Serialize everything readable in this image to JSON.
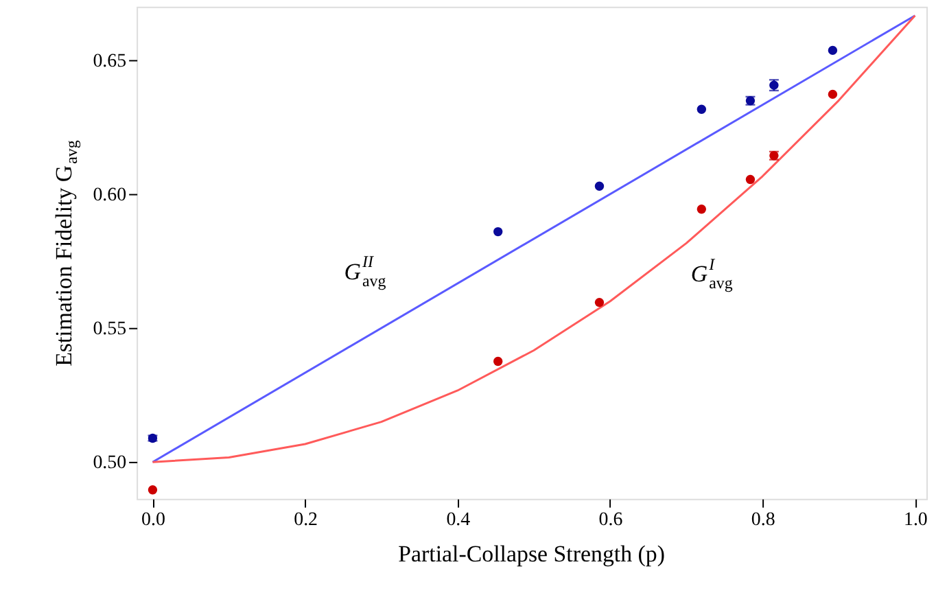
{
  "chart_data": {
    "type": "scatter",
    "xlabel": "Partial-Collapse Strength (p)",
    "ylabel": "Estimation Fidelity G$_{avg}$",
    "x": [
      0,
      0.453,
      0.586,
      0.72,
      0.784,
      0.815,
      0.892
    ],
    "xlim": [
      -0.021,
      1.015
    ],
    "xticks": [
      {
        "value": 0,
        "label": "0.0"
      },
      {
        "value": 0.2,
        "label": "0.2"
      },
      {
        "value": 0.4,
        "label": "0.4"
      },
      {
        "value": 0.6,
        "label": "0.6"
      },
      {
        "value": 0.8,
        "label": "0.8"
      },
      {
        "value": 1,
        "label": "1.0"
      }
    ],
    "ylim": [
      0.4863,
      0.67
    ],
    "yticks": [
      {
        "value": 0.5,
        "label": "0.50"
      },
      {
        "value": 0.55,
        "label": "0.55"
      },
      {
        "value": 0.6,
        "label": "0.60"
      },
      {
        "value": 0.65,
        "label": "0.65"
      }
    ],
    "grid": false,
    "series": [
      {
        "type": "line",
        "color": "#5a5aff",
        "x": [
          0,
          1
        ],
        "values": [
          0.5,
          0.6667
        ],
        "line_style": "solid",
        "marker": "none"
      },
      {
        "type": "line",
        "color": "#ff5a5a",
        "x": [
          0,
          0.1,
          0.2,
          0.3,
          0.4,
          0.5,
          0.6,
          0.7,
          0.8,
          0.9,
          1
        ],
        "values": [
          0.5,
          0.5017,
          0.5067,
          0.515,
          0.5267,
          0.5417,
          0.56,
          0.5817,
          0.6067,
          0.635,
          0.6667
        ],
        "line_style": "solid",
        "marker": "none"
      },
      {
        "color": "#0a0a9a",
        "marker": "circle",
        "values": [
          0.5089,
          0.586,
          0.603,
          0.6317,
          0.6349,
          0.6407,
          0.6537
        ],
        "errors": [
          0.001,
          null,
          null,
          null,
          0.0015,
          0.002,
          null
        ]
      },
      {
        "color": "#cc0000",
        "marker": "circle",
        "values": [
          0.4896,
          0.5376,
          0.5596,
          0.5944,
          0.6055,
          0.6144,
          0.6373
        ],
        "errors": [
          null,
          null,
          null,
          null,
          null,
          0.0015,
          null
        ]
      }
    ],
    "annotations": [
      "G$^{II}$$_{avg}$",
      "G$^{I}$$_{avg}$"
    ]
  }
}
